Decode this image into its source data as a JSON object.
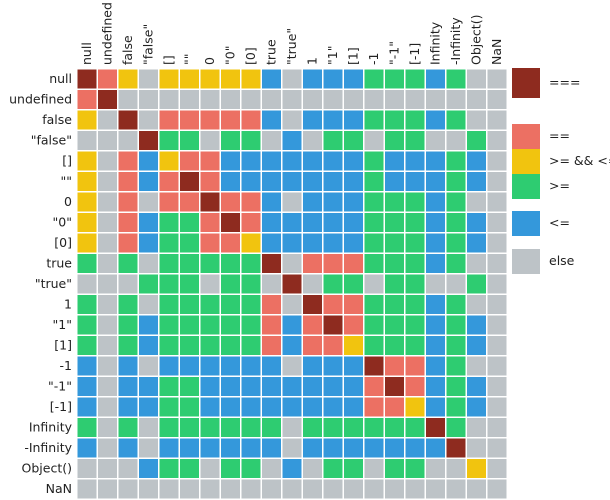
{
  "chart_data": {
    "type": "heatmap",
    "labels": [
      "null",
      "undefined",
      "false",
      "\"false\"",
      "[]",
      "\"\"",
      "0",
      "\"0\"",
      "[0]",
      "true",
      "\"true\"",
      "1",
      "\"1\"",
      "[1]",
      "-1",
      "\"-1\"",
      "[-1]",
      "Infinity",
      "-Infinity",
      "Object()",
      "NaN"
    ],
    "legend": [
      {
        "label": "===",
        "color": "#8e2b1f"
      },
      {
        "label": "==",
        "color": "#ec7063"
      },
      {
        "label": ">= && <=",
        "color": "#f1c40f"
      },
      {
        "label": ">=",
        "color": "#2ecc71"
      },
      {
        "label": "<=",
        "color": "#3498db"
      },
      {
        "label": "else",
        "color": "#bdc3c7"
      }
    ],
    "matrix": [
      [
        "===",
        "==",
        ">= && <=",
        "else",
        ">= && <=",
        ">= && <=",
        ">= && <=",
        ">= && <=",
        ">= && <=",
        "<=",
        "else",
        "<=",
        "<=",
        "<=",
        ">=",
        ">=",
        ">=",
        "<=",
        ">=",
        "else",
        "else"
      ],
      [
        "==",
        "===",
        "else",
        "else",
        "else",
        "else",
        "else",
        "else",
        "else",
        "else",
        "else",
        "else",
        "else",
        "else",
        "else",
        "else",
        "else",
        "else",
        "else",
        "else",
        "else"
      ],
      [
        ">= && <=",
        "else",
        "===",
        "else",
        "==",
        "==",
        "==",
        "==",
        "==",
        "<=",
        "else",
        "<=",
        "<=",
        "<=",
        ">=",
        ">=",
        ">=",
        "<=",
        ">=",
        "else",
        "else"
      ],
      [
        "else",
        "else",
        "else",
        "===",
        ">=",
        ">=",
        "else",
        ">=",
        ">=",
        "else",
        "<=",
        "else",
        ">=",
        ">=",
        "else",
        ">=",
        ">=",
        "else",
        "else",
        ">=",
        "else"
      ],
      [
        ">= && <=",
        "else",
        "==",
        "<=",
        ">= && <=",
        "==",
        "==",
        "<=",
        "<=",
        "<=",
        "<=",
        "<=",
        "<=",
        "<=",
        ">=",
        "<=",
        "<=",
        "<=",
        ">=",
        "<=",
        "else"
      ],
      [
        ">= && <=",
        "else",
        "==",
        "<=",
        "==",
        "===",
        "==",
        "<=",
        "<=",
        "<=",
        "<=",
        "<=",
        "<=",
        "<=",
        ">=",
        "<=",
        "<=",
        "<=",
        ">=",
        "<=",
        "else"
      ],
      [
        ">= && <=",
        "else",
        "==",
        "else",
        "==",
        "==",
        "===",
        "==",
        "==",
        "<=",
        "else",
        "<=",
        "<=",
        "<=",
        ">=",
        ">=",
        ">=",
        "<=",
        ">=",
        "else",
        "else"
      ],
      [
        ">= && <=",
        "else",
        "==",
        "<=",
        ">=",
        ">=",
        "==",
        "===",
        "==",
        "<=",
        "<=",
        "<=",
        "<=",
        "<=",
        ">=",
        ">=",
        ">=",
        "<=",
        ">=",
        "<=",
        "else"
      ],
      [
        ">= && <=",
        "else",
        "==",
        "<=",
        ">=",
        ">=",
        "==",
        "==",
        ">= && <=",
        "<=",
        "<=",
        "<=",
        "<=",
        "<=",
        ">=",
        ">=",
        ">=",
        "<=",
        ">=",
        "<=",
        "else"
      ],
      [
        ">=",
        "else",
        ">=",
        "else",
        ">=",
        ">=",
        ">=",
        ">=",
        ">=",
        "===",
        "else",
        "==",
        "==",
        "==",
        ">=",
        ">=",
        ">=",
        "<=",
        ">=",
        "else",
        "else"
      ],
      [
        "else",
        "else",
        "else",
        ">=",
        ">=",
        ">=",
        "else",
        ">=",
        ">=",
        "else",
        "===",
        "else",
        ">=",
        ">=",
        "else",
        ">=",
        ">=",
        "else",
        "else",
        ">=",
        "else"
      ],
      [
        ">=",
        "else",
        ">=",
        "else",
        ">=",
        ">=",
        ">=",
        ">=",
        ">=",
        "==",
        "else",
        "===",
        "==",
        "==",
        ">=",
        ">=",
        ">=",
        "<=",
        ">=",
        "else",
        "else"
      ],
      [
        ">=",
        "else",
        ">=",
        "<=",
        ">=",
        ">=",
        ">=",
        ">=",
        ">=",
        "==",
        "<=",
        "==",
        "===",
        "==",
        ">=",
        ">=",
        ">=",
        "<=",
        ">=",
        "<=",
        "else"
      ],
      [
        ">=",
        "else",
        ">=",
        "<=",
        ">=",
        ">=",
        ">=",
        ">=",
        ">=",
        "==",
        "<=",
        "==",
        "==",
        ">= && <=",
        ">=",
        ">=",
        ">=",
        "<=",
        ">=",
        "<=",
        "else"
      ],
      [
        "<=",
        "else",
        "<=",
        "else",
        "<=",
        "<=",
        "<=",
        "<=",
        "<=",
        "<=",
        "else",
        "<=",
        "<=",
        "<=",
        "===",
        "==",
        "==",
        "<=",
        ">=",
        "else",
        "else"
      ],
      [
        "<=",
        "else",
        "<=",
        "<=",
        ">=",
        ">=",
        "<=",
        "<=",
        "<=",
        "<=",
        "<=",
        "<=",
        "<=",
        "<=",
        "==",
        "===",
        "==",
        "<=",
        ">=",
        "<=",
        "else"
      ],
      [
        "<=",
        "else",
        "<=",
        "<=",
        ">=",
        ">=",
        "<=",
        "<=",
        "<=",
        "<=",
        "<=",
        "<=",
        "<=",
        "<=",
        "==",
        "==",
        ">= && <=",
        "<=",
        ">=",
        "<=",
        "else"
      ],
      [
        ">=",
        "else",
        ">=",
        "else",
        ">=",
        ">=",
        ">=",
        ">=",
        ">=",
        ">=",
        "else",
        ">=",
        ">=",
        ">=",
        ">=",
        ">=",
        ">=",
        "===",
        ">=",
        "else",
        "else"
      ],
      [
        "<=",
        "else",
        "<=",
        "else",
        "<=",
        "<=",
        "<=",
        "<=",
        "<=",
        "<=",
        "else",
        "<=",
        "<=",
        "<=",
        "<=",
        "<=",
        "<=",
        "<=",
        "===",
        "else",
        "else"
      ],
      [
        "else",
        "else",
        "else",
        "<=",
        ">=",
        ">=",
        "else",
        ">=",
        ">=",
        "else",
        "<=",
        "else",
        ">=",
        ">=",
        "else",
        ">=",
        ">=",
        "else",
        "else",
        ">= && <=",
        "else"
      ],
      [
        "else",
        "else",
        "else",
        "else",
        "else",
        "else",
        "else",
        "else",
        "else",
        "else",
        "else",
        "else",
        "else",
        "else",
        "else",
        "else",
        "else",
        "else",
        "else",
        "else",
        "else"
      ]
    ]
  }
}
